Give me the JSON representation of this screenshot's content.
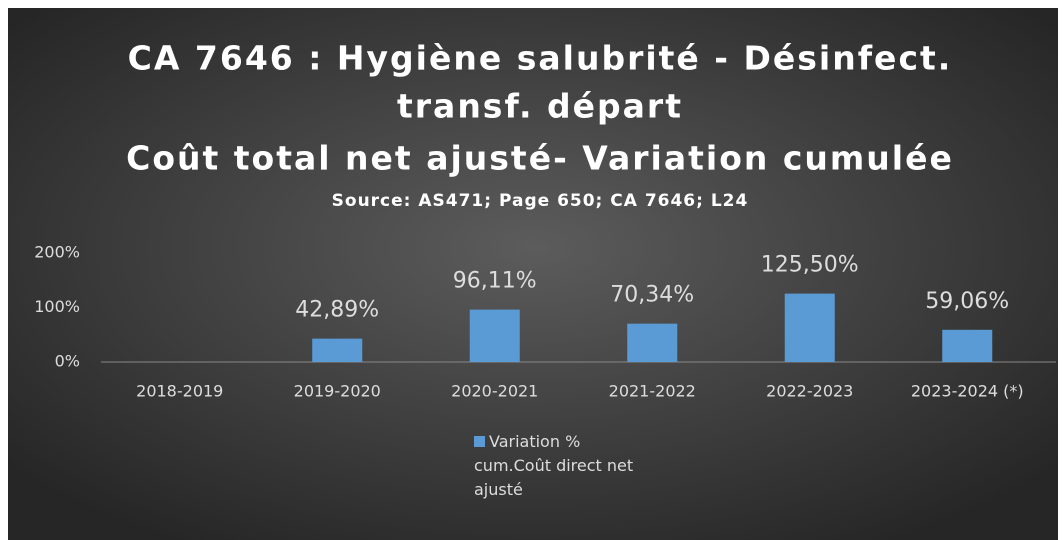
{
  "chart_data": {
    "type": "bar",
    "title": [
      "CA 7646 : Hygiène salubrité - Désinfect.",
      "transf. départ",
      "Coût total net ajusté- Variation cumulée"
    ],
    "subtitle": "Source: AS471; Page 650; CA 7646; L24",
    "categories": [
      "2018-2019",
      "2019-2020",
      "2020-2021",
      "2021-2022",
      "2022-2023",
      "2023-2024 (*)"
    ],
    "series": [
      {
        "name": "Variation % cum.Coût direct net ajusté",
        "color": "#5b9bd5",
        "values": [
          null,
          42.89,
          96.11,
          70.34,
          125.5,
          59.06
        ],
        "value_labels": [
          null,
          "42,89%",
          "96,11%",
          "70,34%",
          "125,50%",
          "59,06%"
        ]
      }
    ],
    "ylim": [
      0,
      200
    ],
    "yticks": [
      {
        "value": 0,
        "label": "0%"
      },
      {
        "value": 100,
        "label": "100%"
      },
      {
        "value": 200,
        "label": "200%"
      }
    ],
    "grid": false,
    "legend": "bottom"
  }
}
